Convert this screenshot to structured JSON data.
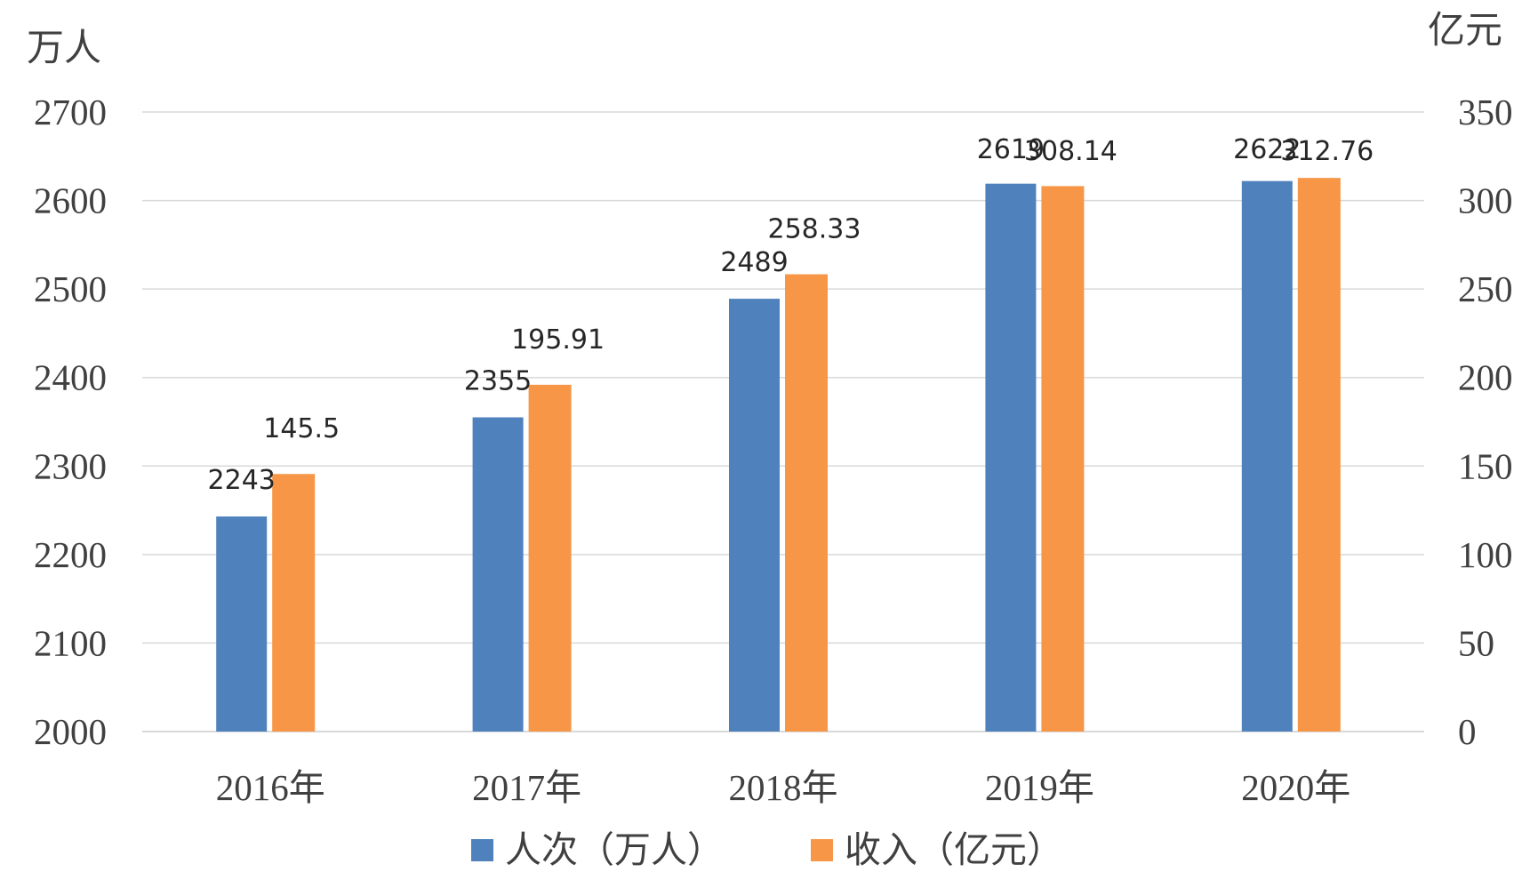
{
  "chart_data": {
    "type": "bar",
    "categories": [
      "2016年",
      "2017年",
      "2018年",
      "2019年",
      "2020年"
    ],
    "left_axis_unit": "万人",
    "right_axis_unit": "亿元",
    "left_ylim": [
      2000,
      2700
    ],
    "right_ylim": [
      0,
      350
    ],
    "left_ticks": [
      "2000",
      "2100",
      "2200",
      "2300",
      "2400",
      "2500",
      "2600",
      "2700"
    ],
    "right_ticks": [
      "0",
      "50",
      "100",
      "150",
      "200",
      "250",
      "300",
      "350"
    ],
    "grid": true,
    "legend_position": "bottom",
    "series": [
      {
        "name": "人次（万人）",
        "axis": "left",
        "color": "#4F81BD",
        "values": [
          2243,
          2355,
          2489,
          2619,
          2622
        ],
        "labels": [
          "2243",
          "2355",
          "2489",
          "2619",
          "2622"
        ]
      },
      {
        "name": "收入（亿元）",
        "axis": "right",
        "color": "#F79646",
        "values": [
          145.5,
          195.91,
          258.33,
          308.14,
          312.76
        ],
        "labels": [
          "145.5",
          "195.91",
          "258.33",
          "308.14",
          "312.76"
        ]
      }
    ]
  }
}
